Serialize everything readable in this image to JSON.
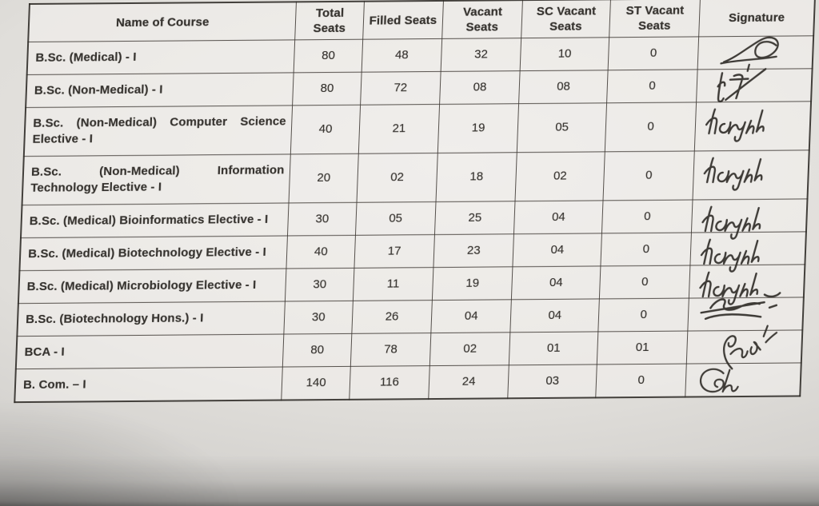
{
  "colors": {
    "paper": "#e4e2df",
    "ink": "#35322e",
    "grid_line": "#3a3530",
    "signature_ink": "#2e2b27"
  },
  "table": {
    "headers": [
      "Name of Course",
      "Total Seats",
      "Filled Seats",
      "Vacant Seats",
      "SC Vacant Seats",
      "ST Vacant Seats",
      "Signature"
    ],
    "rows": [
      {
        "course": "B.Sc. (Medical) - I",
        "total": "80",
        "filled": "48",
        "vacant": "32",
        "sc_vacant": "10",
        "st_vacant": "0",
        "signature": "circular-scribble"
      },
      {
        "course": "B.Sc. (Non-Medical) - I",
        "total": "80",
        "filled": "72",
        "vacant": "08",
        "sc_vacant": "08",
        "st_vacant": "0",
        "signature": "slash-scribble"
      },
      {
        "course": "B.Sc. (Non-Medical) Computer Science Elective - I",
        "total": "40",
        "filled": "21",
        "vacant": "19",
        "sc_vacant": "05",
        "st_vacant": "0",
        "signature": "cursive-scribble"
      },
      {
        "course": "B.Sc. (Non-Medical) Information Technology Elective - I",
        "total": "20",
        "filled": "02",
        "vacant": "18",
        "sc_vacant": "02",
        "st_vacant": "0",
        "signature": "cursive-scribble"
      },
      {
        "course": "B.Sc. (Medical) Bioinformatics Elective - I",
        "total": "30",
        "filled": "05",
        "vacant": "25",
        "sc_vacant": "04",
        "st_vacant": "0",
        "signature": "cursive-scribble"
      },
      {
        "course": "B.Sc. (Medical) Biotechnology Elective - I",
        "total": "40",
        "filled": "17",
        "vacant": "23",
        "sc_vacant": "04",
        "st_vacant": "0",
        "signature": "cursive-scribble"
      },
      {
        "course": "B.Sc. (Medical) Microbiology Elective - I",
        "total": "30",
        "filled": "11",
        "vacant": "19",
        "sc_vacant": "04",
        "st_vacant": "0",
        "signature": "cursive-scribble"
      },
      {
        "course": "B.Sc. (Biotechnology Hons.) - I",
        "total": "30",
        "filled": "26",
        "vacant": "04",
        "sc_vacant": "04",
        "st_vacant": "0",
        "signature": "strikethrough-scribble"
      },
      {
        "course": "BCA - I",
        "total": "80",
        "filled": "78",
        "vacant": "02",
        "sc_vacant": "01",
        "st_vacant": "01",
        "signature": "rising-cursive-scribble"
      },
      {
        "course": "B. Com. – I",
        "total": "140",
        "filled": "116",
        "vacant": "24",
        "sc_vacant": "03",
        "st_vacant": "0",
        "signature": "curl-scribble"
      }
    ]
  }
}
